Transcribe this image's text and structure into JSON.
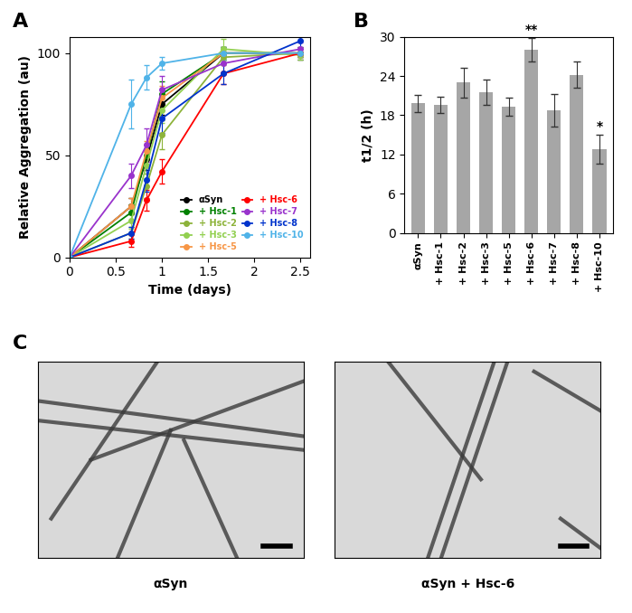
{
  "chart_data": [
    {
      "panel": "A",
      "type": "line",
      "x_label": "Time (days)",
      "y_label": "Relative Aggregation (au)",
      "xlim": [
        0,
        2.6
      ],
      "xticks": [
        0,
        0.5,
        1,
        1.5,
        2,
        2.5
      ],
      "ylim": [
        0,
        108
      ],
      "yticks": [
        0,
        50,
        100
      ],
      "legend": "lower right",
      "marker": "o",
      "x": [
        0,
        0.667,
        0.833,
        1.0,
        1.667,
        2.5
      ],
      "series": [
        {
          "name": "αSyn",
          "color": "#000000",
          "values": [
            0,
            25,
            48,
            75,
            100,
            100
          ],
          "errors": [
            0,
            4,
            5,
            5,
            3,
            3
          ]
        },
        {
          "name": "+ Hsc-1",
          "color": "#008000",
          "values": [
            0,
            22,
            50,
            80,
            100,
            100
          ],
          "errors": [
            0,
            4,
            5,
            6,
            3,
            2
          ]
        },
        {
          "name": "+ Hsc-2",
          "color": "#8db33a",
          "values": [
            0,
            12,
            35,
            60,
            98,
            100
          ],
          "errors": [
            0,
            3,
            6,
            7,
            4,
            2
          ]
        },
        {
          "name": "+ Hsc-3",
          "color": "#92d050",
          "values": [
            0,
            18,
            45,
            72,
            102,
            99
          ],
          "errors": [
            0,
            4,
            6,
            6,
            5,
            2
          ]
        },
        {
          "name": "+ Hsc-5",
          "color": "#f79646",
          "values": [
            0,
            25,
            52,
            78,
            100,
            100
          ],
          "errors": [
            0,
            4,
            5,
            6,
            3,
            2
          ]
        },
        {
          "name": "+ Hsc-6",
          "color": "#ff0000",
          "values": [
            0,
            8,
            28,
            42,
            90,
            100
          ],
          "errors": [
            0,
            3,
            5,
            6,
            5,
            2
          ]
        },
        {
          "name": "+ Hsc-7",
          "color": "#9933cc",
          "values": [
            0,
            40,
            55,
            82,
            95,
            102
          ],
          "errors": [
            0,
            6,
            8,
            7,
            5,
            3
          ]
        },
        {
          "name": "+ Hsc-8",
          "color": "#0033cc",
          "values": [
            0,
            12,
            38,
            68,
            90,
            106
          ],
          "errors": [
            0,
            3,
            6,
            7,
            5,
            4
          ]
        },
        {
          "name": "+ Hsc-10",
          "color": "#4fb3e8",
          "values": [
            0,
            75,
            88,
            95,
            100,
            100
          ],
          "errors": [
            0,
            12,
            6,
            3,
            3,
            2
          ]
        }
      ]
    },
    {
      "panel": "B",
      "type": "bar",
      "y_label": "t1/2 (h)",
      "categories": [
        "αSyn",
        "+ Hsc-1",
        "+ Hsc-2",
        "+ Hsc-3",
        "+ Hsc-5",
        "+ Hsc-6",
        "+ Hsc-7",
        "+ Hsc-8",
        "+ Hsc-10"
      ],
      "values": [
        19.8,
        19.6,
        23.0,
        21.5,
        19.3,
        28.0,
        18.7,
        24.2,
        12.8
      ],
      "errors": [
        1.3,
        1.2,
        2.3,
        1.9,
        1.4,
        1.8,
        2.5,
        2.0,
        2.2
      ],
      "color": "#a6a6a6",
      "ylim": [
        0,
        30
      ],
      "yticks": [
        0,
        6,
        12,
        18,
        24,
        30
      ],
      "annotations": [
        {
          "category": "+ Hsc-6",
          "text": "**"
        },
        {
          "category": "+ Hsc-10",
          "text": "*"
        }
      ]
    }
  ],
  "images": {
    "panel": "C",
    "items": [
      {
        "caption": "αSyn"
      },
      {
        "caption": "αSyn + Hsc-6"
      }
    ]
  }
}
